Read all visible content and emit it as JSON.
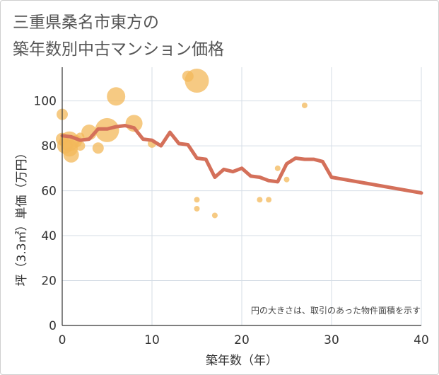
{
  "chart_data": {
    "type": "scatter+line",
    "title": "三重県桑名市東方の\n築年数別中古マンション価格",
    "xlabel": "築年数（年）",
    "ylabel": "坪（3.3㎡）単価（万円）",
    "xlim": [
      0,
      40
    ],
    "ylim": [
      0,
      115
    ],
    "x_ticks": [
      0,
      10,
      20,
      30,
      40
    ],
    "y_ticks": [
      0,
      20,
      40,
      60,
      80,
      100
    ],
    "grid": true,
    "note": "円の大きさは、取引のあった物件面積を示す",
    "colors": {
      "bubble": "#f3b85a",
      "line": "#d4705a",
      "grid": "#d5dde6"
    },
    "bubbles": [
      {
        "x": 0,
        "y": 94,
        "r": 8
      },
      {
        "x": 0,
        "y": 83,
        "r": 9
      },
      {
        "x": 0.3,
        "y": 80,
        "r": 11
      },
      {
        "x": 0.8,
        "y": 79,
        "r": 12
      },
      {
        "x": 0.8,
        "y": 82,
        "r": 14
      },
      {
        "x": 1,
        "y": 76,
        "r": 11
      },
      {
        "x": 1.5,
        "y": 82,
        "r": 9
      },
      {
        "x": 2,
        "y": 80,
        "r": 7
      },
      {
        "x": 2,
        "y": 84,
        "r": 6
      },
      {
        "x": 3,
        "y": 86,
        "r": 11
      },
      {
        "x": 4,
        "y": 79,
        "r": 8
      },
      {
        "x": 5,
        "y": 87,
        "r": 17
      },
      {
        "x": 6,
        "y": 102,
        "r": 13
      },
      {
        "x": 8,
        "y": 90,
        "r": 12
      },
      {
        "x": 10,
        "y": 81,
        "r": 6
      },
      {
        "x": 14,
        "y": 111,
        "r": 8
      },
      {
        "x": 15,
        "y": 109,
        "r": 17
      },
      {
        "x": 15,
        "y": 56,
        "r": 4
      },
      {
        "x": 15,
        "y": 52,
        "r": 4
      },
      {
        "x": 17,
        "y": 49,
        "r": 4
      },
      {
        "x": 22,
        "y": 56,
        "r": 4
      },
      {
        "x": 23,
        "y": 56,
        "r": 4
      },
      {
        "x": 24,
        "y": 70,
        "r": 4
      },
      {
        "x": 25,
        "y": 65,
        "r": 4
      },
      {
        "x": 27,
        "y": 98,
        "r": 4
      }
    ],
    "series": [
      {
        "x": [
          0,
          1,
          2,
          3,
          4,
          5,
          6,
          7,
          8,
          9,
          10,
          11,
          12,
          13,
          14,
          15,
          16,
          17,
          18,
          19,
          20,
          21,
          22,
          23,
          24,
          25,
          26,
          27,
          28,
          29,
          30,
          40
        ],
        "y": [
          84.5,
          84,
          82.5,
          83,
          87.5,
          87.5,
          88.5,
          89,
          88,
          83,
          82.5,
          80,
          86,
          81,
          80.5,
          74.5,
          74,
          66,
          69.5,
          68.5,
          70,
          66.5,
          66,
          64.5,
          64,
          72,
          74.5,
          74,
          74,
          73,
          66,
          59
        ]
      }
    ]
  }
}
